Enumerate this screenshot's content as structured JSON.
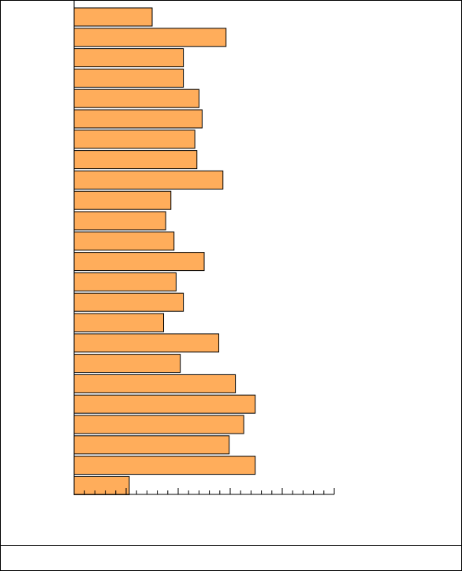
{
  "chart_data": {
    "type": "barh",
    "categories": [
      null,
      null,
      null,
      null,
      null,
      null,
      null,
      null,
      null,
      null,
      null,
      null,
      null,
      null,
      null,
      null,
      null,
      null,
      null,
      null,
      null,
      null,
      null,
      null
    ],
    "values": [
      7.5,
      14.6,
      10.5,
      10.5,
      12.0,
      12.3,
      11.6,
      11.8,
      14.3,
      9.3,
      8.8,
      9.6,
      12.5,
      9.8,
      10.5,
      8.6,
      13.9,
      10.2,
      15.5,
      17.4,
      16.3,
      14.9,
      17.4,
      5.3
    ],
    "color": "#ffad5b",
    "xlim": [
      0,
      25
    ],
    "xticks": [
      0,
      5,
      10,
      15,
      20,
      25
    ],
    "xminorticks": [
      1,
      2,
      3,
      4,
      6,
      7,
      8,
      9,
      11,
      12,
      13,
      14,
      16,
      17,
      18,
      19,
      21,
      22,
      23,
      24
    ]
  }
}
